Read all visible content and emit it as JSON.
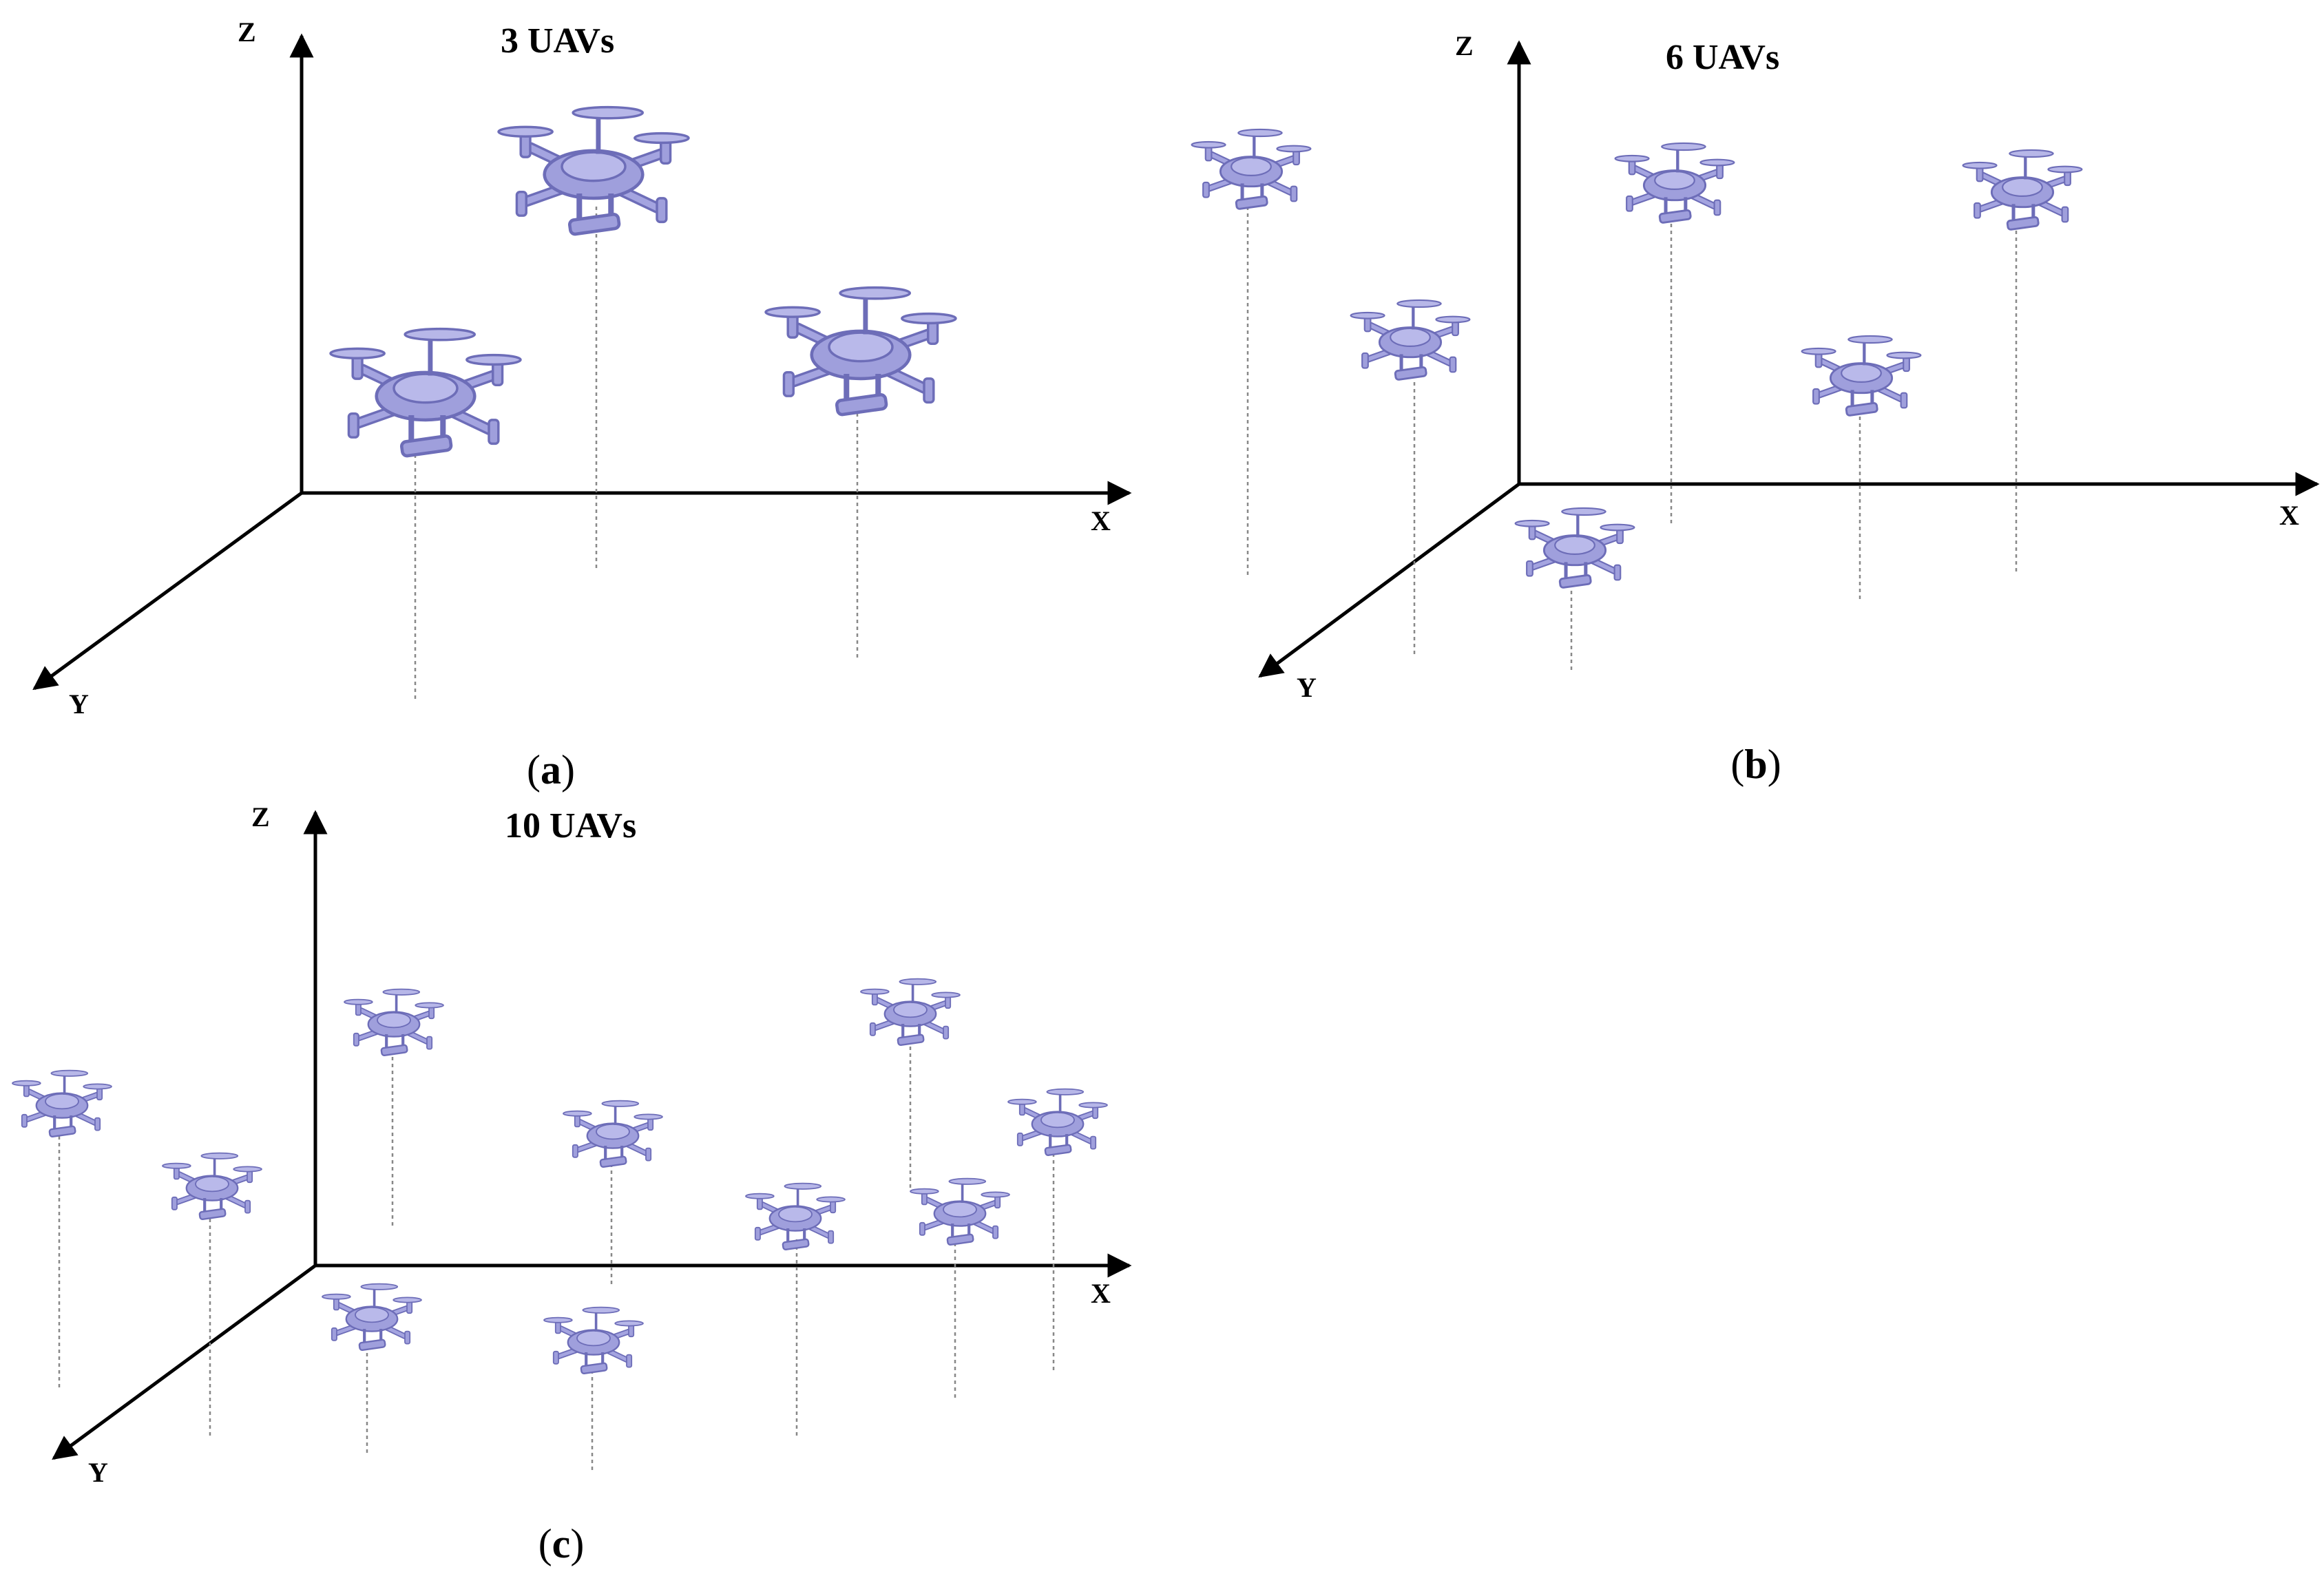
{
  "figure": {
    "panels": [
      {
        "title": "3 UAVs",
        "caption_letter": "a",
        "axes": {
          "x": "X",
          "y": "Y",
          "z": "Z"
        },
        "uav_count": 3
      },
      {
        "title": "6 UAVs",
        "caption_letter": "b",
        "axes": {
          "x": "X",
          "y": "Y",
          "z": "Z"
        },
        "uav_count": 6
      },
      {
        "title": "10 UAVs",
        "caption_letter": "c",
        "axes": {
          "x": "X",
          "y": "Y",
          "z": "Z"
        },
        "uav_count": 10
      }
    ],
    "colors": {
      "uav_fill": "#9f9fdc",
      "uav_stroke": "#6d6db8",
      "axis": "#000000",
      "drop_line": "#888888"
    },
    "icon": "quadcopter-drone-icon"
  }
}
